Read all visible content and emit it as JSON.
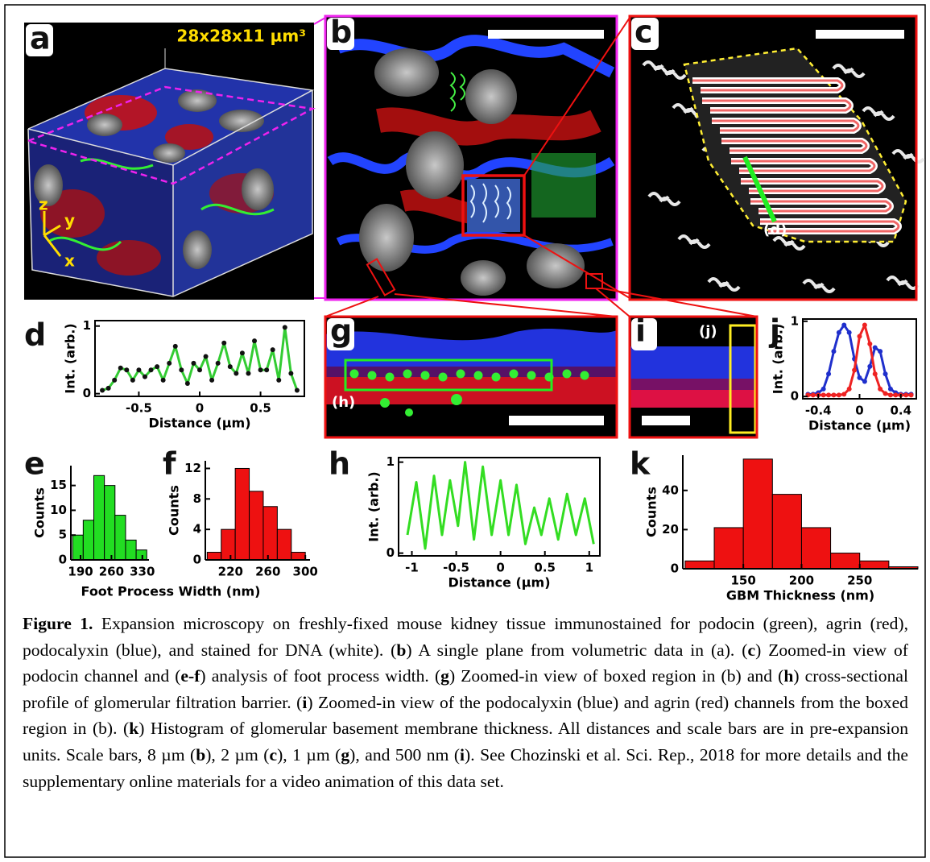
{
  "panels": {
    "a": "a",
    "b": "b",
    "c": "c",
    "d": "d",
    "e": "e",
    "f": "f",
    "g": "g",
    "h": "h",
    "i": "i",
    "j": "j",
    "k": "k"
  },
  "annotations": {
    "volume": "28x28x11 µm³",
    "axis_z": "z",
    "axis_y": "y",
    "axis_x": "x",
    "ref_d": "(d)",
    "ref_h": "(h)",
    "ref_j": "(j)"
  },
  "ef_xlabel": "Foot Process Width (nm)",
  "chart_data": [
    {
      "type": "line",
      "xlabel": "Distance (µm)",
      "ylabel": "Int. (arb.)",
      "x": [
        -0.8,
        -0.75,
        -0.7,
        -0.65,
        -0.6,
        -0.55,
        -0.5,
        -0.45,
        -0.4,
        -0.35,
        -0.3,
        -0.25,
        -0.2,
        -0.15,
        -0.1,
        -0.05,
        0,
        0.05,
        0.1,
        0.15,
        0.2,
        0.25,
        0.3,
        0.35,
        0.4,
        0.45,
        0.5,
        0.55,
        0.6,
        0.65,
        0.7,
        0.75,
        0.8
      ],
      "series": [
        {
          "color": "#33cc33",
          "marker_color": "#111111",
          "values": [
            0.05,
            0.08,
            0.2,
            0.38,
            0.35,
            0.2,
            0.35,
            0.25,
            0.35,
            0.4,
            0.2,
            0.45,
            0.7,
            0.35,
            0.15,
            0.45,
            0.35,
            0.55,
            0.2,
            0.45,
            0.75,
            0.4,
            0.3,
            0.6,
            0.3,
            0.78,
            0.35,
            0.35,
            0.65,
            0.2,
            0.98,
            0.3,
            0.05
          ]
        }
      ],
      "xlim": [
        -0.86,
        0.86
      ],
      "ylim": [
        -0.04,
        1.08
      ],
      "xticks": [
        -0.5,
        0,
        0.5
      ],
      "yticks": [
        0,
        1
      ]
    },
    {
      "type": "histogram",
      "ylabel": "Counts",
      "color": "#22dd22",
      "bins": [
        172,
        196,
        220,
        244,
        268,
        292,
        316,
        340
      ],
      "counts": [
        5,
        8,
        17,
        15,
        9,
        4,
        2
      ],
      "xlim": [
        168,
        345
      ],
      "ylim": [
        0,
        19
      ],
      "xticks": [
        190,
        260,
        330
      ],
      "yticks": [
        0,
        5,
        10,
        15
      ]
    },
    {
      "type": "histogram",
      "ylabel": "Counts",
      "color": "#ee1111",
      "bins": [
        195,
        210,
        225,
        240,
        255,
        270,
        285,
        300
      ],
      "counts": [
        1,
        4,
        12,
        9,
        7,
        4,
        1
      ],
      "xlim": [
        193,
        305
      ],
      "ylim": [
        0,
        13
      ],
      "xticks": [
        220,
        260,
        300
      ],
      "yticks": [
        0,
        4,
        8,
        12
      ]
    },
    {
      "type": "line",
      "xlabel": "Distance (µm)",
      "ylabel": "Int. (arb.)",
      "x": [
        -1.05,
        -0.95,
        -0.85,
        -0.75,
        -0.66,
        -0.57,
        -0.48,
        -0.4,
        -0.3,
        -0.2,
        -0.1,
        0,
        0.09,
        0.18,
        0.28,
        0.38,
        0.46,
        0.55,
        0.65,
        0.75,
        0.85,
        0.95,
        1.05
      ],
      "series": [
        {
          "color": "#33dd22",
          "values": [
            0.2,
            0.78,
            0.05,
            0.85,
            0.2,
            0.8,
            0.3,
            1.0,
            0.15,
            0.95,
            0.2,
            0.8,
            0.2,
            0.75,
            0.1,
            0.5,
            0.2,
            0.6,
            0.15,
            0.65,
            0.2,
            0.6,
            0.1
          ]
        }
      ],
      "xlim": [
        -1.15,
        1.12
      ],
      "ylim": [
        -0.03,
        1.05
      ],
      "xticks": [
        -1,
        -0.5,
        0,
        0.5,
        1
      ],
      "yticks": [
        0,
        1
      ]
    },
    {
      "type": "line",
      "xlabel": "Distance (µm)",
      "ylabel": "Int. (arb.)",
      "x": [
        -0.5,
        -0.45,
        -0.4,
        -0.35,
        -0.3,
        -0.25,
        -0.2,
        -0.15,
        -0.1,
        -0.05,
        0,
        0.05,
        0.1,
        0.15,
        0.2,
        0.25,
        0.3,
        0.35,
        0.4,
        0.45,
        0.5
      ],
      "series": [
        {
          "color": "#1f2fcc",
          "marker_color": "#1f2fcc",
          "values": [
            0.03,
            0.03,
            0.05,
            0.1,
            0.3,
            0.6,
            0.85,
            0.95,
            0.85,
            0.5,
            0.25,
            0.2,
            0.4,
            0.65,
            0.6,
            0.3,
            0.1,
            0.05,
            0.03,
            0.03,
            0.03
          ]
        },
        {
          "color": "#ee2222",
          "marker_color": "#ee2222",
          "values": [
            0.02,
            0.02,
            0.02,
            0.02,
            0.02,
            0.02,
            0.02,
            0.03,
            0.1,
            0.35,
            0.8,
            0.95,
            0.7,
            0.3,
            0.1,
            0.04,
            0.02,
            0.02,
            0.02,
            0.02,
            0.02
          ]
        }
      ],
      "xlim": [
        -0.55,
        0.55
      ],
      "ylim": [
        -0.03,
        1.03
      ],
      "xticks": [
        -0.4,
        0,
        0.4
      ],
      "yticks": [
        0,
        1
      ]
    },
    {
      "type": "histogram",
      "xlabel": "GBM Thickness (nm)",
      "ylabel": "Counts",
      "color": "#ee1111",
      "bins": [
        100,
        125,
        150,
        175,
        200,
        225,
        250,
        275,
        300
      ],
      "counts": [
        4,
        21,
        56,
        38,
        21,
        8,
        4,
        1
      ],
      "xlim": [
        98,
        300
      ],
      "ylim": [
        0,
        58
      ],
      "xticks": [
        150,
        200,
        250
      ],
      "yticks": [
        0,
        20,
        40
      ]
    }
  ],
  "caption": [
    {
      "text": "Figure 1.",
      "bold": true
    },
    {
      "text": " Expansion microscopy on freshly-fixed mouse kidney tissue immunostained for podocin (green), agrin (red), podocalyxin (blue), and stained for DNA (white). (",
      "bold": false
    },
    {
      "text": "b",
      "bold": true
    },
    {
      "text": ") A single plane from volumetric data in (a). (",
      "bold": false
    },
    {
      "text": "c",
      "bold": true
    },
    {
      "text": ") Zoomed-in view of podocin channel and (",
      "bold": false
    },
    {
      "text": "e-f",
      "bold": true
    },
    {
      "text": ") analysis of foot process width. (",
      "bold": false
    },
    {
      "text": "g",
      "bold": true
    },
    {
      "text": ") Zoomed-in view of boxed region in (b) and (",
      "bold": false
    },
    {
      "text": "h",
      "bold": true
    },
    {
      "text": ") cross-sectional profile of glomerular filtration barrier. (",
      "bold": false
    },
    {
      "text": "i",
      "bold": true
    },
    {
      "text": ") Zoomed-in view of the podocalyxin (blue) and agrin (red) channels from the boxed region in (b). (",
      "bold": false
    },
    {
      "text": "k",
      "bold": true
    },
    {
      "text": ") Histogram of glomerular basement membrane thickness. All distances and scale bars are in pre-expansion units. Scale bars, 8 µm (",
      "bold": false
    },
    {
      "text": "b",
      "bold": true
    },
    {
      "text": "), 2 µm (",
      "bold": false
    },
    {
      "text": "c",
      "bold": true
    },
    {
      "text": "), 1 µm (",
      "bold": false
    },
    {
      "text": "g",
      "bold": true
    },
    {
      "text": "), and 500 nm (",
      "bold": false
    },
    {
      "text": "i",
      "bold": true
    },
    {
      "text": "). See Chozinski et al. Sci. Rep., 2018 for more details and the supplementary online materials for a video animation of this data set.",
      "bold": false
    }
  ]
}
